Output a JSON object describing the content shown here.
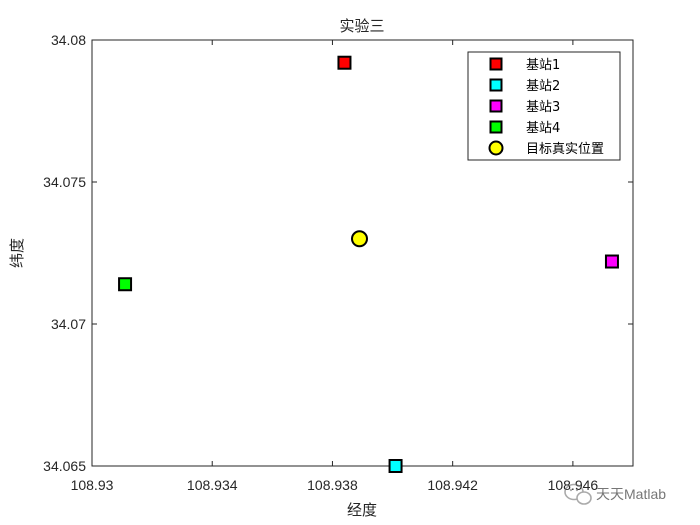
{
  "chart_data": {
    "type": "scatter",
    "title": "实验三",
    "xlabel": "经度",
    "ylabel": "纬度",
    "xlim": [
      108.93,
      108.948
    ],
    "ylim": [
      34.065,
      34.08
    ],
    "xticks": [
      108.93,
      108.934,
      108.938,
      108.942,
      108.946
    ],
    "xtick_labels": [
      "108.93",
      "108.934",
      "108.938",
      "108.942",
      "108.946"
    ],
    "yticks": [
      34.065,
      34.07,
      34.075,
      34.08
    ],
    "ytick_labels": [
      "34.065",
      "34.07",
      "34.075",
      "34.08"
    ],
    "grid": false,
    "legend_position": "top-right",
    "series": [
      {
        "name": "基站1",
        "marker": "square",
        "color": "#ff0000",
        "x": [
          108.9384
        ],
        "y": [
          34.0792
        ]
      },
      {
        "name": "基站2",
        "marker": "square",
        "color": "#00ffff",
        "x": [
          108.9401
        ],
        "y": [
          34.065
        ]
      },
      {
        "name": "基站3",
        "marker": "square",
        "color": "#ff00ff",
        "x": [
          108.9473
        ],
        "y": [
          34.0722
        ]
      },
      {
        "name": "基站4",
        "marker": "square",
        "color": "#00ff00",
        "x": [
          108.9311
        ],
        "y": [
          34.0714
        ]
      },
      {
        "name": "目标真实位置",
        "marker": "circle",
        "color": "#ffff00",
        "x": [
          108.9389
        ],
        "y": [
          34.073
        ]
      }
    ]
  },
  "watermark": {
    "text": "天天Matlab",
    "icon": "wechat-icon"
  }
}
